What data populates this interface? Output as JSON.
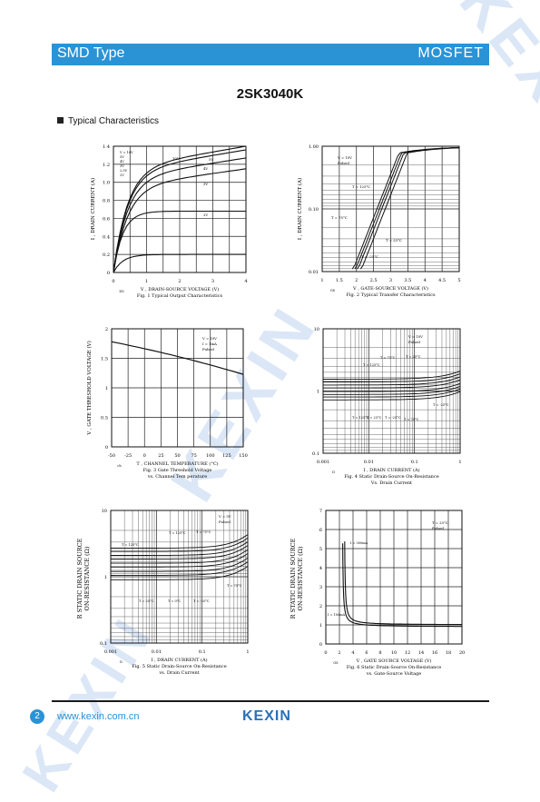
{
  "header": {
    "left": "SMD Type",
    "right": "MOSFET"
  },
  "part_number": "2SK3040K",
  "section_title": "Typical Characteristics",
  "footer": {
    "page": "2",
    "url": "www.kexin.com.cn",
    "logo": "KEXIN"
  },
  "watermark": "KEXIN",
  "colors": {
    "header_bg": "#2a93d6",
    "footer_line": "#1a1a1a",
    "logo": "#2a6fb6"
  },
  "charts": [
    {
      "id": "fig1",
      "caption": "Fig. 1 Typical Output Characteristics",
      "xlabel_sub": "DS",
      "xlabel": "V  , DRAIN-SOURCE VOLTAGE (V)",
      "ylabel": "I  , DRAIN CURRENT (A)",
      "ylabel_sub": "D",
      "xticks": [
        "0",
        "1",
        "2",
        "3",
        "4"
      ],
      "yticks": [
        "0",
        "0.2",
        "0.4",
        "0.6",
        "0.8",
        "1.0",
        "1.2",
        "1.4"
      ],
      "legend": [
        "V  = 10V",
        "5V",
        "4V",
        "3V",
        "2.5V",
        "2V"
      ],
      "labels": [
        "10V",
        "5V",
        "4V",
        "3V",
        "2V"
      ]
    },
    {
      "id": "fig2",
      "caption": "Fig. 2 Typical Transfer Characteristics",
      "xlabel": "V  , GATE-SOURCE VOLTAGE (V)",
      "xlabel_sub": "GS",
      "ylabel": "I  , DRAIN CURRENT (A)",
      "ylabel_sub": "D",
      "xticks": [
        "1",
        "1.5",
        "2",
        "2.5",
        "3",
        "3.5",
        "4",
        "4.5",
        "5"
      ],
      "yticks": [
        "0.01",
        "0.10",
        "1.00"
      ],
      "legend": [
        "V  = 10V",
        "Pulsed"
      ],
      "labels": [
        "T  = 125°C",
        "T  = 75°C",
        "T  = 25°C",
        "T  = -25°C"
      ]
    },
    {
      "id": "fig3",
      "caption": "Fig. 3 Gate Threshold Voltage",
      "caption2": "vs. Channel Tem perature",
      "xlabel": "T   , CHANNEL TEMPERATURE (°C)",
      "xlabel_sub": "ch",
      "ylabel": "V        , GATE THRESHOLD VOLTAGE (V)",
      "ylabel_sub": "GS(th)",
      "xticks": [
        "-50",
        "-25",
        "0",
        "25",
        "50",
        "75",
        "100",
        "125",
        "150"
      ],
      "yticks": [
        "0",
        "0.5",
        "1",
        "1.5",
        "2"
      ],
      "legend": [
        "V  = 10V",
        "I = 1mA",
        "Pulsed"
      ]
    },
    {
      "id": "fig4",
      "caption": "Fig. 4 Static Drain-Source On-Resistance",
      "caption2": "Vs. Drain Current",
      "xlabel": "I , DRAIN CURRENT (A)",
      "xlabel_sub": "D",
      "xticks": [
        "0.001",
        "0.01",
        "0.1",
        "1"
      ],
      "yticks": [
        "0.1",
        "1",
        "10"
      ],
      "legend": [
        "V  = 10V",
        "Pulsed"
      ],
      "labels": [
        "T  = 125°C",
        "T  = 75°C",
        "T  = 25°C",
        "T  = -25°C",
        "T  = 125°C",
        "T  = 25°C",
        "T  = -25°C",
        "T  = 75°C"
      ]
    },
    {
      "id": "fig5",
      "caption": "Fig. 5 Static Drain-Source On-Resistance",
      "caption2": "vs. Drain Current",
      "xlabel": "I  , DRAIN CURRENT (A)",
      "xlabel_sub": "D",
      "ylabel": "R         STATIC DRAIN SOURCE",
      "ylabel2": "ON-RESISTANCE (Ω)",
      "ylabel_sub": "DS(on)",
      "xticks": [
        "0.001",
        "0.01",
        "0.1",
        "1"
      ],
      "yticks": [
        "0.1",
        "1",
        "10"
      ],
      "legend": [
        "V  = 5V",
        "Pulsed"
      ],
      "labels": [
        "T  = 125°C",
        "T  = 125°C",
        "T  = 75°C",
        "T  = 25°C",
        "T  = 0°C",
        "T  = -25°C",
        "T  = 75°C"
      ]
    },
    {
      "id": "fig6",
      "caption": "Fig. 6 Static Drain-Source On-Resistance",
      "caption2": "vs. Gate-Source Voltage",
      "xlabel": "V  , GATE SOURCE VOLTAGE (V)",
      "xlabel_sub": "GS",
      "ylabel": "R         STATIC DRAIN SOURCE",
      "ylabel2": "ON-RESISTANCE (Ω)",
      "ylabel_sub": "DS(on)",
      "xticks": [
        "0",
        "2",
        "4",
        "6",
        "8",
        "10",
        "12",
        "14",
        "16",
        "18",
        "20"
      ],
      "yticks": [
        "0",
        "1",
        "2",
        "3",
        "4",
        "5",
        "6",
        "7"
      ],
      "legend": [
        "T  = 25°C",
        "Pulsed"
      ],
      "labels": [
        "I = 300mA",
        "I = 100mA"
      ]
    }
  ]
}
